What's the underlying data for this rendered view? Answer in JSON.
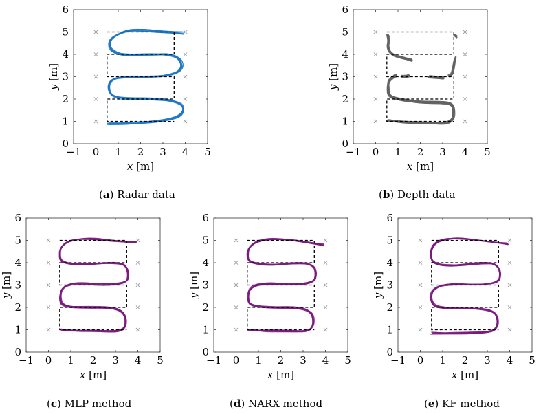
{
  "chart_data": [
    {
      "id": "a",
      "type": "line",
      "caption_letter": "a",
      "caption_text": "Radar data",
      "xlabel": "x [m]",
      "ylabel": "y [m]",
      "xlim": [
        -1,
        5
      ],
      "ylim": [
        0,
        6
      ],
      "xticks": [
        -1,
        0,
        1,
        2,
        3,
        4,
        5
      ],
      "yticks": [
        0,
        1,
        2,
        3,
        4,
        5,
        6
      ],
      "reference_path": [
        [
          0.5,
          5
        ],
        [
          3.5,
          5
        ],
        [
          3.5,
          4
        ],
        [
          0.5,
          4
        ],
        [
          0.5,
          3
        ],
        [
          3.5,
          3
        ],
        [
          3.5,
          2
        ],
        [
          0.5,
          2
        ],
        [
          0.5,
          1
        ],
        [
          3.5,
          1
        ]
      ],
      "markers": [
        [
          0,
          1
        ],
        [
          0,
          2
        ],
        [
          0,
          3
        ],
        [
          0,
          4
        ],
        [
          0,
          5
        ],
        [
          4,
          1
        ],
        [
          4,
          2
        ],
        [
          4,
          3
        ],
        [
          4,
          4
        ],
        [
          4,
          5
        ]
      ],
      "trajectory": [
        [
          3.9,
          4.95
        ],
        [
          3.0,
          5.0
        ],
        [
          2.0,
          5.1
        ],
        [
          1.3,
          5.05
        ],
        [
          0.75,
          4.8
        ],
        [
          0.55,
          4.45
        ],
        [
          0.75,
          4.1
        ],
        [
          1.4,
          3.95
        ],
        [
          2.5,
          4.0
        ],
        [
          3.4,
          4.0
        ],
        [
          3.85,
          3.75
        ],
        [
          3.85,
          3.3
        ],
        [
          3.3,
          3.05
        ],
        [
          2.3,
          3.0
        ],
        [
          1.2,
          3.0
        ],
        [
          0.65,
          2.85
        ],
        [
          0.55,
          2.45
        ],
        [
          0.75,
          2.1
        ],
        [
          1.5,
          2.0
        ],
        [
          2.6,
          2.0
        ],
        [
          3.45,
          1.95
        ],
        [
          3.95,
          1.7
        ],
        [
          3.85,
          1.25
        ],
        [
          3.2,
          1.05
        ],
        [
          2.2,
          0.95
        ],
        [
          1.3,
          0.9
        ],
        [
          0.55,
          0.9
        ]
      ],
      "color": "#1f77c4",
      "spread": 0.06
    },
    {
      "id": "b",
      "type": "line",
      "caption_letter": "b",
      "caption_text": "Depth data",
      "xlabel": "x [m]",
      "ylabel": "y [m]",
      "xlim": [
        -1,
        5
      ],
      "ylim": [
        0,
        6
      ],
      "xticks": [
        -1,
        0,
        1,
        2,
        3,
        4,
        5
      ],
      "yticks": [
        0,
        1,
        2,
        3,
        4,
        5,
        6
      ],
      "reference_path": [
        [
          0.5,
          5
        ],
        [
          3.5,
          5
        ],
        [
          3.5,
          4
        ],
        [
          0.5,
          4
        ],
        [
          0.5,
          3
        ],
        [
          3.5,
          3
        ],
        [
          3.5,
          2
        ],
        [
          0.5,
          2
        ],
        [
          0.5,
          1
        ],
        [
          3.5,
          1
        ]
      ],
      "markers": [
        [
          0,
          1
        ],
        [
          0,
          2
        ],
        [
          0,
          3
        ],
        [
          0,
          4
        ],
        [
          0,
          5
        ],
        [
          4,
          1
        ],
        [
          4,
          2
        ],
        [
          4,
          3
        ],
        [
          4,
          4
        ],
        [
          4,
          5
        ]
      ],
      "trajectory_segments": [
        [
          [
            0.55,
            4.85
          ],
          [
            0.6,
            4.6
          ],
          [
            0.55,
            4.3
          ],
          [
            0.7,
            4.0
          ],
          [
            1.2,
            3.85
          ],
          [
            1.6,
            3.75
          ]
        ],
        [
          [
            3.55,
            4.85
          ],
          [
            3.6,
            4.8
          ]
        ],
        [
          [
            3.55,
            3.85
          ],
          [
            3.5,
            3.5
          ],
          [
            3.45,
            3.15
          ],
          [
            3.3,
            3.05
          ]
        ],
        [
          [
            0.9,
            3.05
          ],
          [
            0.6,
            2.9
          ],
          [
            0.55,
            2.5
          ],
          [
            0.6,
            2.1
          ],
          [
            1.2,
            1.95
          ],
          [
            2.0,
            1.85
          ],
          [
            3.0,
            1.85
          ],
          [
            3.45,
            1.75
          ],
          [
            3.5,
            1.4
          ],
          [
            3.45,
            1.05
          ],
          [
            3.1,
            0.9
          ],
          [
            2.2,
            0.95
          ],
          [
            1.4,
            0.95
          ],
          [
            0.6,
            1.05
          ]
        ],
        [
          [
            2.4,
            3.0
          ],
          [
            3.0,
            2.95
          ]
        ],
        [
          [
            1.2,
            3.0
          ],
          [
            1.5,
            3.05
          ]
        ]
      ],
      "color": "#636363",
      "spread": 0.05
    },
    {
      "id": "c",
      "type": "line",
      "caption_letter": "c",
      "caption_text": "MLP method",
      "xlabel": "x [m]",
      "ylabel": "y [m]",
      "xlim": [
        -1,
        5
      ],
      "ylim": [
        0,
        6
      ],
      "xticks": [
        -1,
        0,
        1,
        2,
        3,
        4,
        5
      ],
      "yticks": [
        0,
        1,
        2,
        3,
        4,
        5,
        6
      ],
      "reference_path": [
        [
          0.5,
          5
        ],
        [
          3.5,
          5
        ],
        [
          3.5,
          4
        ],
        [
          0.5,
          4
        ],
        [
          0.5,
          3
        ],
        [
          3.5,
          3
        ],
        [
          3.5,
          2
        ],
        [
          0.5,
          2
        ],
        [
          0.5,
          1
        ],
        [
          3.5,
          1
        ]
      ],
      "markers": [
        [
          0,
          1
        ],
        [
          0,
          2
        ],
        [
          0,
          3
        ],
        [
          0,
          4
        ],
        [
          0,
          5
        ],
        [
          4,
          1
        ],
        [
          4,
          2
        ],
        [
          4,
          3
        ],
        [
          4,
          4
        ],
        [
          4,
          5
        ]
      ],
      "trajectory": [
        [
          3.9,
          4.9
        ],
        [
          3.0,
          4.95
        ],
        [
          1.8,
          5.1
        ],
        [
          1.0,
          5.0
        ],
        [
          0.55,
          4.75
        ],
        [
          0.5,
          4.3
        ],
        [
          0.6,
          4.0
        ],
        [
          1.5,
          3.9
        ],
        [
          2.8,
          4.0
        ],
        [
          3.45,
          3.95
        ],
        [
          3.6,
          3.5
        ],
        [
          3.5,
          3.1
        ],
        [
          2.5,
          3.0
        ],
        [
          1.2,
          3.1
        ],
        [
          0.6,
          2.9
        ],
        [
          0.5,
          2.4
        ],
        [
          0.65,
          2.05
        ],
        [
          1.6,
          2.0
        ],
        [
          2.8,
          2.0
        ],
        [
          3.4,
          1.8
        ],
        [
          3.5,
          1.2
        ],
        [
          3.2,
          0.9
        ],
        [
          2.2,
          0.95
        ],
        [
          1.2,
          0.95
        ],
        [
          0.6,
          1.0
        ]
      ],
      "color": "#7b1b7e",
      "spread": 0.05
    },
    {
      "id": "d",
      "type": "line",
      "caption_letter": "d",
      "caption_text": "NARX method",
      "xlabel": "x [m]",
      "ylabel": "y [m]",
      "xlim": [
        -1,
        5
      ],
      "ylim": [
        0,
        6
      ],
      "xticks": [
        -1,
        0,
        1,
        2,
        3,
        4,
        5
      ],
      "yticks": [
        0,
        1,
        2,
        3,
        4,
        5,
        6
      ],
      "reference_path": [
        [
          0.5,
          5
        ],
        [
          3.5,
          5
        ],
        [
          3.5,
          4
        ],
        [
          0.5,
          4
        ],
        [
          0.5,
          3
        ],
        [
          3.5,
          3
        ],
        [
          3.5,
          2
        ],
        [
          0.5,
          2
        ],
        [
          0.5,
          1
        ],
        [
          3.5,
          1
        ]
      ],
      "markers": [
        [
          0,
          1
        ],
        [
          0,
          2
        ],
        [
          0,
          3
        ],
        [
          0,
          4
        ],
        [
          0,
          5
        ],
        [
          4,
          1
        ],
        [
          4,
          2
        ],
        [
          4,
          3
        ],
        [
          4,
          4
        ],
        [
          4,
          5
        ]
      ],
      "trajectory": [
        [
          3.9,
          4.8
        ],
        [
          3.0,
          4.95
        ],
        [
          1.8,
          5.1
        ],
        [
          1.0,
          5.0
        ],
        [
          0.55,
          4.7
        ],
        [
          0.5,
          4.3
        ],
        [
          0.6,
          4.0
        ],
        [
          1.5,
          3.9
        ],
        [
          2.8,
          4.0
        ],
        [
          3.45,
          3.9
        ],
        [
          3.6,
          3.5
        ],
        [
          3.5,
          3.1
        ],
        [
          2.5,
          3.0
        ],
        [
          1.3,
          3.1
        ],
        [
          0.6,
          2.9
        ],
        [
          0.5,
          2.4
        ],
        [
          0.65,
          2.05
        ],
        [
          1.6,
          2.0
        ],
        [
          2.8,
          2.0
        ],
        [
          3.4,
          1.8
        ],
        [
          3.5,
          1.2
        ],
        [
          3.2,
          0.9
        ],
        [
          2.2,
          0.95
        ],
        [
          1.2,
          0.95
        ],
        [
          0.55,
          1.0
        ]
      ],
      "color": "#7b1b7e",
      "spread": 0.05
    },
    {
      "id": "e",
      "type": "line",
      "caption_letter": "e",
      "caption_text": "KF method",
      "xlabel": "x [m]",
      "ylabel": "y [m]",
      "xlim": [
        -1,
        5
      ],
      "ylim": [
        0,
        6
      ],
      "xticks": [
        -1,
        0,
        1,
        2,
        3,
        4,
        5
      ],
      "yticks": [
        0,
        1,
        2,
        3,
        4,
        5,
        6
      ],
      "reference_path": [
        [
          0.5,
          5
        ],
        [
          3.5,
          5
        ],
        [
          3.5,
          4
        ],
        [
          0.5,
          4
        ],
        [
          0.5,
          3
        ],
        [
          3.5,
          3
        ],
        [
          3.5,
          2
        ],
        [
          0.5,
          2
        ],
        [
          0.5,
          1
        ],
        [
          3.5,
          1
        ]
      ],
      "markers": [
        [
          0,
          1
        ],
        [
          0,
          2
        ],
        [
          0,
          3
        ],
        [
          0,
          4
        ],
        [
          0,
          5
        ],
        [
          4,
          1
        ],
        [
          4,
          2
        ],
        [
          4,
          3
        ],
        [
          4,
          4
        ],
        [
          4,
          5
        ]
      ],
      "trajectory": [
        [
          3.9,
          4.85
        ],
        [
          3.0,
          4.95
        ],
        [
          1.8,
          5.1
        ],
        [
          1.0,
          5.05
        ],
        [
          0.55,
          4.8
        ],
        [
          0.45,
          4.3
        ],
        [
          0.6,
          3.95
        ],
        [
          1.5,
          3.85
        ],
        [
          2.8,
          4.0
        ],
        [
          3.45,
          3.95
        ],
        [
          3.6,
          3.5
        ],
        [
          3.5,
          3.1
        ],
        [
          2.5,
          3.0
        ],
        [
          1.2,
          3.05
        ],
        [
          0.55,
          2.85
        ],
        [
          0.45,
          2.4
        ],
        [
          0.65,
          2.0
        ],
        [
          1.6,
          1.95
        ],
        [
          2.8,
          1.95
        ],
        [
          3.4,
          1.75
        ],
        [
          3.5,
          1.2
        ],
        [
          3.2,
          0.9
        ],
        [
          2.2,
          0.85
        ],
        [
          1.2,
          0.85
        ],
        [
          0.5,
          0.85
        ]
      ],
      "color": "#7b1b7e",
      "spread": 0.05
    }
  ]
}
